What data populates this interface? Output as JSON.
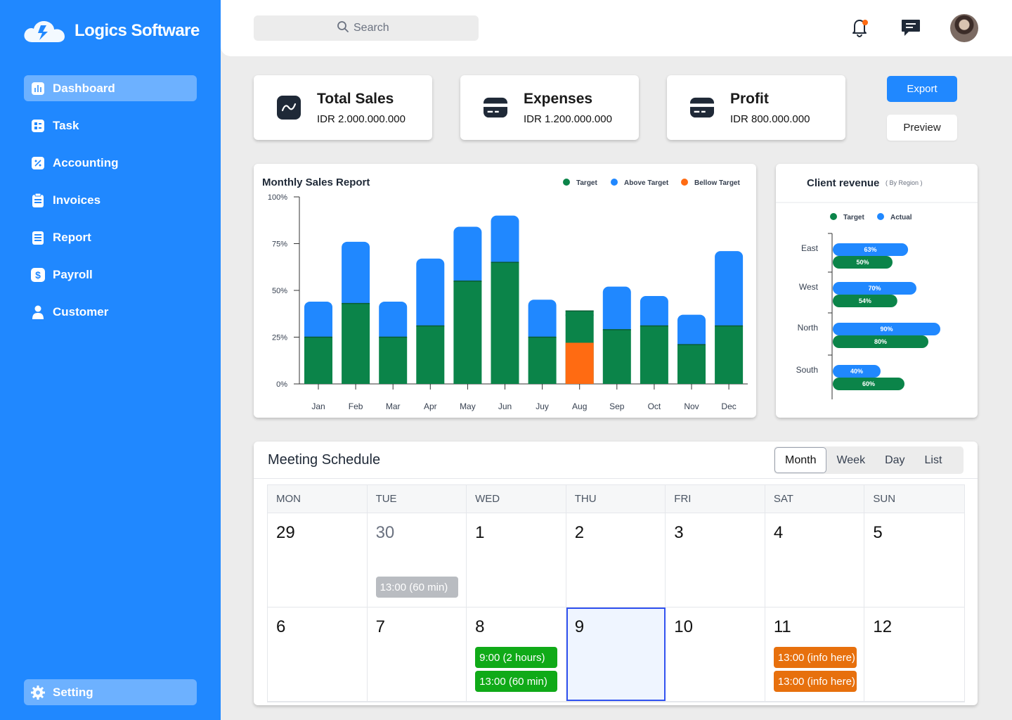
{
  "app": {
    "name": "Logics Software"
  },
  "sidebar": {
    "items": [
      {
        "label": "Dashboard",
        "icon": "bar-chart-icon",
        "active": true
      },
      {
        "label": "Task",
        "icon": "task-icon"
      },
      {
        "label": "Accounting",
        "icon": "percent-icon"
      },
      {
        "label": "Invoices",
        "icon": "invoice-icon"
      },
      {
        "label": "Report",
        "icon": "report-icon"
      },
      {
        "label": "Payroll",
        "icon": "dollar-icon"
      },
      {
        "label": "Customer",
        "icon": "user-icon"
      }
    ],
    "setting": {
      "label": "Setting",
      "icon": "gear-icon"
    }
  },
  "header": {
    "search_placeholder": "Search"
  },
  "stats": [
    {
      "title": "Total Sales",
      "value": "IDR 2.000.000.000",
      "icon": "trend-icon"
    },
    {
      "title": "Expenses",
      "value": "IDR 1.200.000.000",
      "icon": "card-icon"
    },
    {
      "title": "Profit",
      "value": "IDR 800.000.000",
      "icon": "card-icon"
    }
  ],
  "actions": {
    "export": "Export",
    "preview": "Preview"
  },
  "colors": {
    "primary": "#2088ff",
    "target": "#0b8449",
    "above": "#2088ff",
    "below": "#ff6b12"
  },
  "chart_data": [
    {
      "type": "bar",
      "title": "Monthly Sales Report",
      "categories": [
        "Jan",
        "Feb",
        "Mar",
        "Apr",
        "May",
        "Jun",
        "Juy",
        "Aug",
        "Sep",
        "Oct",
        "Nov",
        "Dec"
      ],
      "yticks": [
        "100%",
        "75%",
        "50%",
        "25%",
        "0%"
      ],
      "ylim": [
        0,
        100
      ],
      "legend": [
        "Target",
        "Above Target",
        "Bellow Target"
      ],
      "legend_position": "top-right",
      "series": [
        {
          "name": "Target",
          "values": [
            25,
            43,
            25,
            31,
            55,
            65,
            25,
            39,
            29,
            31,
            21,
            31
          ]
        },
        {
          "name": "Above Target",
          "values": [
            19,
            33,
            19,
            36,
            29,
            25,
            20,
            0,
            23,
            16,
            16,
            40
          ]
        },
        {
          "name": "Bellow Target",
          "values": [
            0,
            0,
            0,
            0,
            0,
            0,
            0,
            22,
            0,
            0,
            0,
            0
          ]
        }
      ]
    },
    {
      "type": "bar",
      "orientation": "horizontal",
      "title": "Client revenue",
      "subtitle": "( By Region )",
      "categories": [
        "East",
        "West",
        "North",
        "South"
      ],
      "legend": [
        "Target",
        "Actual"
      ],
      "legend_position": "top",
      "series": [
        {
          "name": "Actual",
          "values": [
            63,
            70,
            90,
            40
          ],
          "labels": [
            "63%",
            "70%",
            "90%",
            "40%"
          ]
        },
        {
          "name": "Target",
          "values": [
            50,
            54,
            80,
            60
          ],
          "labels": [
            "50%",
            "54%",
            "80%",
            "60%"
          ]
        }
      ]
    }
  ],
  "calendar": {
    "title": "Meeting Schedule",
    "views": [
      "Month",
      "Week",
      "Day",
      "List"
    ],
    "active_view": "Month",
    "weekdays": [
      "MON",
      "TUE",
      "WED",
      "THU",
      "FRI",
      "SAT",
      "SUN"
    ],
    "weeks": [
      {
        "days": [
          {
            "num": "29",
            "muted": false,
            "events": []
          },
          {
            "num": "30",
            "muted": true,
            "events": [
              {
                "text": "13:00 (60 min)",
                "color": "gray"
              }
            ]
          },
          {
            "num": "1",
            "events": []
          },
          {
            "num": "2",
            "events": []
          },
          {
            "num": "3",
            "events": []
          },
          {
            "num": "4",
            "events": []
          },
          {
            "num": "5",
            "events": []
          }
        ]
      },
      {
        "days": [
          {
            "num": "6",
            "events": []
          },
          {
            "num": "7",
            "events": []
          },
          {
            "num": "8",
            "events": [
              {
                "text": "9:00 (2 hours)",
                "color": "green"
              },
              {
                "text": "13:00 (60 min)",
                "color": "green"
              }
            ]
          },
          {
            "num": "9",
            "selected": true,
            "events": []
          },
          {
            "num": "10",
            "events": []
          },
          {
            "num": "11",
            "events": [
              {
                "text": "13:00 (info here)",
                "color": "orange"
              },
              {
                "text": "13:00 (info here)",
                "color": "orange"
              }
            ]
          },
          {
            "num": "12",
            "events": []
          }
        ]
      }
    ]
  }
}
